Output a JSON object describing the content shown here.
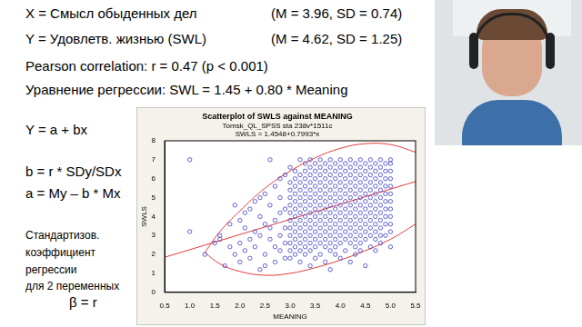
{
  "slide": {
    "stats": [
      [
        "X = Смысл обыденных дел",
        "(M = 3.96, SD = 0.74)"
      ],
      [
        "Y = Удовлетв. жизнью (SWL)",
        "(M = 4.62, SD = 1.25)"
      ]
    ],
    "lines": [
      "Pearson correlation: r = 0.47 (p < 0.001)",
      "Уравнение регрессии: SWL = 1.45 + 0.80 * Meaning"
    ],
    "formulas": [
      "Y = a + bx",
      "b = r * SDy/SDx",
      "a = My – b * Mx"
    ],
    "note": [
      "Стандартизов.",
      "коэффициент",
      "регрессии",
      "для 2 переменных"
    ],
    "beta": "β = r"
  },
  "chart_data": {
    "type": "scatter",
    "title": "Scatterplot of SWLS against MEANING",
    "subtitle": [
      "Tomsk_QL_SPSS sta 238v*1511c",
      "SWLS = 1.4548+0.7993*x"
    ],
    "x_label": "MEANING",
    "y_label": "SWLS",
    "xlim": [
      0.5,
      5.5
    ],
    "xticks": [
      {
        "value": 0.5,
        "label": "0.5"
      },
      {
        "value": 1,
        "label": "1.0"
      },
      {
        "value": 1.5,
        "label": "1.5"
      },
      {
        "value": 2,
        "label": "2.0"
      },
      {
        "value": 2.5,
        "label": "2.5"
      },
      {
        "value": 3,
        "label": "3.0"
      },
      {
        "value": 3.5,
        "label": "3.5"
      },
      {
        "value": 4,
        "label": "4.0"
      },
      {
        "value": 4.5,
        "label": "4.5"
      },
      {
        "value": 5,
        "label": "5.0"
      },
      {
        "value": 5.5,
        "label": "5.5"
      }
    ],
    "ylim": [
      0,
      8
    ],
    "yticks": [
      0,
      1,
      2,
      3,
      4,
      5,
      6,
      7,
      8
    ],
    "grid": false,
    "legend": false,
    "series": [
      {
        "type": "scatter",
        "marker": "circle",
        "color": "#3c3cc4",
        "x": [
          1.0,
          1.0,
          1.3,
          1.5,
          1.6,
          1.6,
          1.7,
          1.8,
          1.8,
          1.9,
          1.9,
          2.0,
          2.0,
          2.0,
          2.1,
          2.1,
          2.1,
          2.2,
          2.2,
          2.2,
          2.3,
          2.3,
          2.3,
          2.4,
          2.4,
          2.4,
          2.4,
          2.5,
          2.5,
          2.5,
          2.5,
          2.6,
          2.6,
          2.6,
          2.6,
          2.7,
          2.7,
          2.7,
          2.7,
          2.8,
          2.8,
          2.8,
          2.8,
          2.8,
          2.9,
          2.9,
          2.9,
          2.9,
          2.9,
          3.0,
          3.0,
          3.0,
          3.0,
          3.0,
          3.0,
          3.0,
          3.0,
          3.0,
          3.0,
          3.0,
          3.0,
          3.1,
          3.1,
          3.1,
          3.1,
          3.1,
          3.1,
          3.1,
          3.1,
          3.1,
          3.1,
          3.1,
          3.1,
          3.2,
          3.2,
          3.2,
          3.2,
          3.2,
          3.2,
          3.2,
          3.2,
          3.2,
          3.2,
          3.2,
          3.2,
          3.2,
          3.3,
          3.3,
          3.3,
          3.3,
          3.3,
          3.3,
          3.3,
          3.3,
          3.3,
          3.3,
          3.3,
          3.3,
          3.3,
          3.4,
          3.4,
          3.4,
          3.4,
          3.4,
          3.4,
          3.4,
          3.4,
          3.4,
          3.4,
          3.4,
          3.4,
          3.4,
          3.4,
          3.5,
          3.5,
          3.5,
          3.5,
          3.5,
          3.5,
          3.5,
          3.5,
          3.5,
          3.5,
          3.5,
          3.5,
          3.5,
          3.6,
          3.6,
          3.6,
          3.6,
          3.6,
          3.6,
          3.6,
          3.6,
          3.6,
          3.6,
          3.6,
          3.6,
          3.6,
          3.7,
          3.7,
          3.7,
          3.7,
          3.7,
          3.7,
          3.7,
          3.7,
          3.7,
          3.7,
          3.7,
          3.7,
          3.7,
          3.8,
          3.8,
          3.8,
          3.8,
          3.8,
          3.8,
          3.8,
          3.8,
          3.8,
          3.8,
          3.8,
          3.8,
          3.8,
          3.8,
          3.9,
          3.9,
          3.9,
          3.9,
          3.9,
          3.9,
          3.9,
          3.9,
          3.9,
          3.9,
          3.9,
          3.9,
          3.9,
          4.0,
          4.0,
          4.0,
          4.0,
          4.0,
          4.0,
          4.0,
          4.0,
          4.0,
          4.0,
          4.0,
          4.0,
          4.0,
          4.1,
          4.1,
          4.1,
          4.1,
          4.1,
          4.1,
          4.1,
          4.1,
          4.1,
          4.1,
          4.1,
          4.1,
          4.2,
          4.2,
          4.2,
          4.2,
          4.2,
          4.2,
          4.2,
          4.2,
          4.2,
          4.2,
          4.2,
          4.2,
          4.2,
          4.3,
          4.3,
          4.3,
          4.3,
          4.3,
          4.3,
          4.3,
          4.3,
          4.3,
          4.3,
          4.3,
          4.3,
          4.3,
          4.4,
          4.4,
          4.4,
          4.4,
          4.4,
          4.4,
          4.4,
          4.4,
          4.4,
          4.4,
          4.4,
          4.4,
          4.4,
          4.5,
          4.5,
          4.5,
          4.5,
          4.5,
          4.5,
          4.5,
          4.5,
          4.5,
          4.5,
          4.5,
          4.5,
          4.6,
          4.6,
          4.6,
          4.6,
          4.6,
          4.6,
          4.6,
          4.6,
          4.6,
          4.6,
          4.6,
          4.6,
          4.7,
          4.7,
          4.7,
          4.7,
          4.7,
          4.7,
          4.7,
          4.7,
          4.7,
          4.7,
          4.7,
          4.7,
          4.8,
          4.8,
          4.8,
          4.8,
          4.8,
          4.8,
          4.8,
          4.8,
          4.8,
          4.8,
          4.8,
          4.8,
          4.9,
          4.9,
          4.9,
          4.9,
          4.9,
          4.9,
          4.9,
          4.9,
          4.9,
          4.9,
          5.0,
          5.0,
          5.0,
          5.0,
          5.0,
          5.0,
          5.0,
          5.0,
          5.0,
          5.0,
          5.0,
          5.0
        ],
        "values": [
          7.0,
          3.2,
          2.0,
          2.6,
          2.8,
          3.0,
          1.4,
          2.4,
          3.6,
          4.6,
          2.0,
          1.6,
          2.6,
          3.8,
          2.2,
          3.4,
          4.2,
          1.8,
          2.8,
          4.4,
          2.4,
          3.2,
          4.8,
          1.2,
          3.0,
          4.0,
          5.0,
          1.4,
          2.0,
          3.6,
          5.2,
          2.8,
          3.4,
          4.6,
          7.0,
          1.6,
          2.4,
          3.8,
          5.6,
          2.2,
          3.0,
          4.2,
          5.0,
          6.0,
          1.8,
          2.6,
          3.4,
          4.4,
          6.2,
          1.8,
          2.2,
          2.6,
          3.0,
          3.4,
          3.8,
          4.2,
          4.6,
          5.0,
          5.4,
          5.8,
          6.6,
          2.0,
          2.4,
          2.8,
          3.2,
          3.6,
          4.0,
          4.4,
          4.8,
          5.2,
          5.6,
          6.0,
          6.4,
          1.6,
          2.2,
          2.6,
          3.0,
          3.4,
          3.8,
          4.2,
          4.6,
          5.0,
          5.4,
          5.8,
          6.2,
          7.0,
          2.0,
          2.4,
          2.8,
          3.2,
          3.6,
          4.0,
          4.4,
          4.8,
          5.2,
          5.6,
          6.0,
          6.4,
          6.8,
          1.4,
          2.2,
          2.6,
          3.0,
          3.4,
          3.8,
          4.2,
          4.6,
          5.0,
          5.4,
          5.8,
          6.2,
          6.6,
          7.0,
          1.8,
          2.4,
          2.8,
          3.2,
          3.6,
          4.0,
          4.4,
          4.8,
          5.2,
          5.6,
          6.0,
          6.4,
          6.8,
          2.0,
          2.6,
          3.0,
          3.4,
          3.8,
          4.2,
          4.6,
          5.0,
          5.4,
          5.8,
          6.2,
          6.6,
          7.0,
          1.6,
          2.4,
          2.8,
          3.2,
          3.6,
          4.0,
          4.4,
          4.8,
          5.2,
          5.6,
          6.0,
          6.4,
          6.8,
          1.2,
          2.2,
          2.6,
          3.0,
          3.4,
          3.8,
          4.2,
          4.6,
          5.0,
          5.4,
          5.8,
          6.2,
          6.6,
          7.0,
          2.0,
          2.4,
          2.8,
          3.2,
          3.6,
          4.0,
          4.4,
          4.8,
          5.2,
          5.6,
          6.0,
          6.4,
          6.8,
          1.8,
          2.6,
          3.0,
          3.4,
          3.8,
          4.2,
          4.6,
          5.0,
          5.4,
          5.8,
          6.2,
          6.6,
          7.0,
          2.2,
          2.8,
          3.2,
          3.6,
          4.0,
          4.4,
          4.8,
          5.2,
          5.6,
          6.0,
          6.4,
          6.8,
          1.6,
          2.6,
          3.0,
          3.4,
          3.8,
          4.2,
          4.6,
          5.0,
          5.4,
          5.8,
          6.2,
          6.6,
          7.0,
          2.0,
          2.4,
          2.8,
          3.2,
          3.6,
          4.0,
          4.4,
          4.8,
          5.2,
          5.6,
          6.0,
          6.4,
          6.8,
          2.2,
          2.6,
          3.0,
          3.4,
          3.8,
          4.2,
          4.6,
          5.0,
          5.4,
          5.8,
          6.2,
          6.6,
          7.0,
          1.4,
          2.8,
          3.2,
          3.6,
          4.0,
          4.4,
          4.8,
          5.2,
          5.6,
          6.0,
          6.4,
          6.8,
          2.4,
          3.0,
          3.4,
          3.8,
          4.2,
          4.6,
          5.0,
          5.4,
          5.8,
          6.2,
          6.6,
          7.0,
          2.2,
          2.8,
          3.2,
          3.6,
          4.0,
          4.4,
          4.8,
          5.2,
          5.6,
          6.0,
          6.4,
          6.8,
          2.6,
          3.0,
          3.4,
          3.8,
          4.2,
          4.6,
          5.0,
          5.4,
          5.8,
          6.2,
          6.6,
          7.0,
          3.0,
          3.6,
          4.0,
          4.4,
          4.8,
          5.2,
          5.6,
          6.0,
          6.4,
          6.8,
          2.4,
          3.2,
          3.6,
          4.0,
          4.4,
          4.8,
          5.2,
          5.6,
          6.0,
          6.4,
          6.8,
          7.0
        ]
      },
      {
        "type": "line",
        "line_style": "solid",
        "color": "#e03c3c",
        "x": [
          0.5,
          5.5
        ],
        "values": [
          1.85,
          5.85
        ]
      },
      {
        "type": "line",
        "line_style": "solid",
        "color": "#e03c3c",
        "x": [
          1.3,
          1.6,
          2.0,
          2.5,
          3.0,
          3.5,
          4.0,
          4.5,
          5.0,
          5.5
        ],
        "values": [
          2.1,
          3.2,
          4.3,
          5.5,
          6.4,
          7.1,
          7.6,
          7.85,
          7.8,
          7.4
        ]
      },
      {
        "type": "line",
        "line_style": "solid",
        "color": "#e03c3c",
        "x": [
          1.3,
          1.6,
          2.0,
          2.5,
          3.0,
          3.5,
          4.0,
          4.5,
          5.0,
          5.5
        ],
        "values": [
          2.1,
          1.5,
          1.1,
          0.9,
          1.0,
          1.3,
          1.7,
          2.2,
          2.8,
          3.6
        ]
      }
    ]
  }
}
